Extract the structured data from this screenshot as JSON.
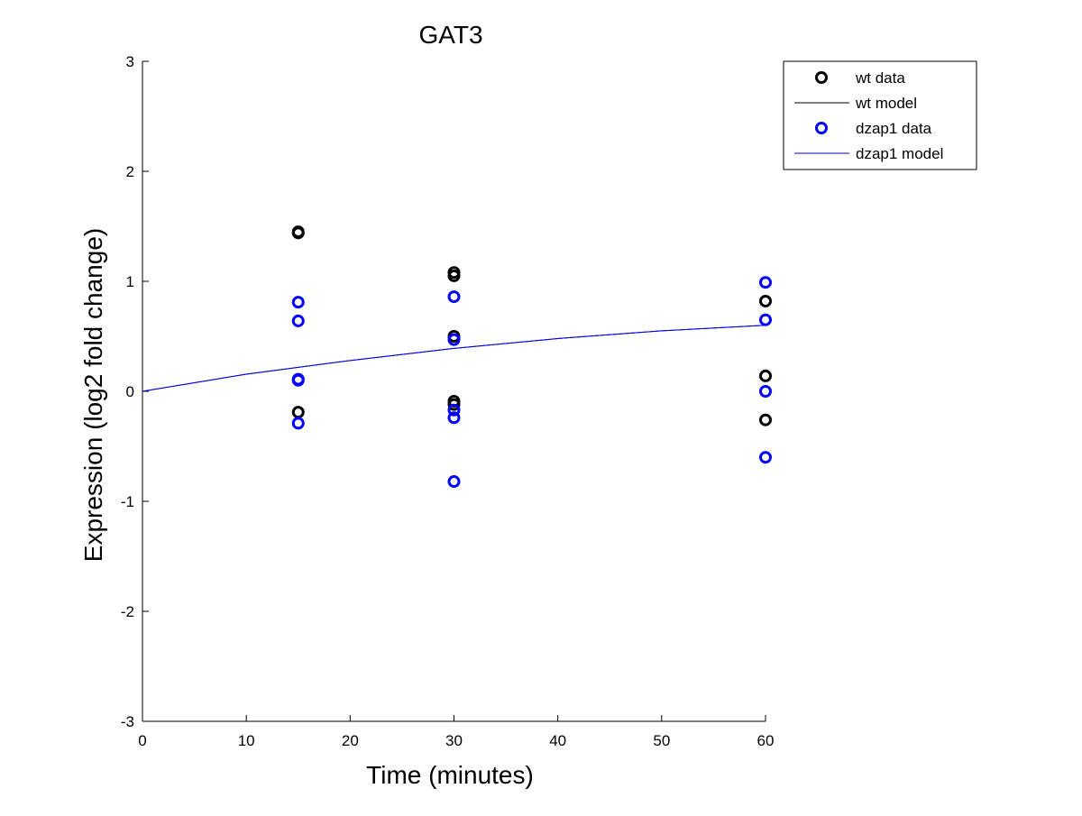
{
  "chart_data": {
    "type": "scatter",
    "title": "GAT3",
    "xlabel": "Time (minutes)",
    "ylabel": "Expression (log2 fold change)",
    "xlim": [
      0,
      60
    ],
    "ylim": [
      -3,
      3
    ],
    "xticks": [
      0,
      10,
      20,
      30,
      40,
      50,
      60
    ],
    "yticks": [
      -3,
      -2,
      -1,
      0,
      1,
      2,
      3
    ],
    "grid": false,
    "legend_position": "top-right (outside plot)",
    "series": [
      {
        "name": "wt data",
        "kind": "markers",
        "color": "#000000",
        "points": [
          {
            "x": 15,
            "y": 1.45
          },
          {
            "x": 15,
            "y": 1.44
          },
          {
            "x": 15,
            "y": -0.19
          },
          {
            "x": 30,
            "y": 1.08
          },
          {
            "x": 30,
            "y": 1.05
          },
          {
            "x": 30,
            "y": 0.5
          },
          {
            "x": 30,
            "y": -0.09
          },
          {
            "x": 30,
            "y": -0.12
          },
          {
            "x": 60,
            "y": 0.82
          },
          {
            "x": 60,
            "y": 0.14
          },
          {
            "x": 60,
            "y": -0.26
          }
        ]
      },
      {
        "name": "wt model",
        "kind": "line",
        "color": "#000000",
        "points": [
          {
            "x": 0,
            "y": 0
          },
          {
            "x": 10,
            "y": 0.156
          },
          {
            "x": 20,
            "y": 0.28
          },
          {
            "x": 30,
            "y": 0.39
          },
          {
            "x": 40,
            "y": 0.48
          },
          {
            "x": 50,
            "y": 0.55
          },
          {
            "x": 60,
            "y": 0.6
          }
        ]
      },
      {
        "name": "dzap1 data",
        "kind": "markers",
        "color": "#0000ff",
        "points": [
          {
            "x": 15,
            "y": 0.81
          },
          {
            "x": 15,
            "y": 0.64
          },
          {
            "x": 15,
            "y": 0.11
          },
          {
            "x": 15,
            "y": 0.1
          },
          {
            "x": 15,
            "y": -0.29
          },
          {
            "x": 30,
            "y": 0.86
          },
          {
            "x": 30,
            "y": 0.47
          },
          {
            "x": 30,
            "y": -0.17
          },
          {
            "x": 30,
            "y": -0.24
          },
          {
            "x": 30,
            "y": -0.82
          },
          {
            "x": 60,
            "y": 0.99
          },
          {
            "x": 60,
            "y": 0.65
          },
          {
            "x": 60,
            "y": 0.0
          },
          {
            "x": 60,
            "y": -0.6
          }
        ]
      },
      {
        "name": "dzap1 model",
        "kind": "line",
        "color": "#0000ff",
        "points": [
          {
            "x": 0,
            "y": 0
          },
          {
            "x": 10,
            "y": 0.156
          },
          {
            "x": 20,
            "y": 0.28
          },
          {
            "x": 30,
            "y": 0.39
          },
          {
            "x": 40,
            "y": 0.48
          },
          {
            "x": 50,
            "y": 0.55
          },
          {
            "x": 60,
            "y": 0.6
          }
        ]
      }
    ]
  }
}
